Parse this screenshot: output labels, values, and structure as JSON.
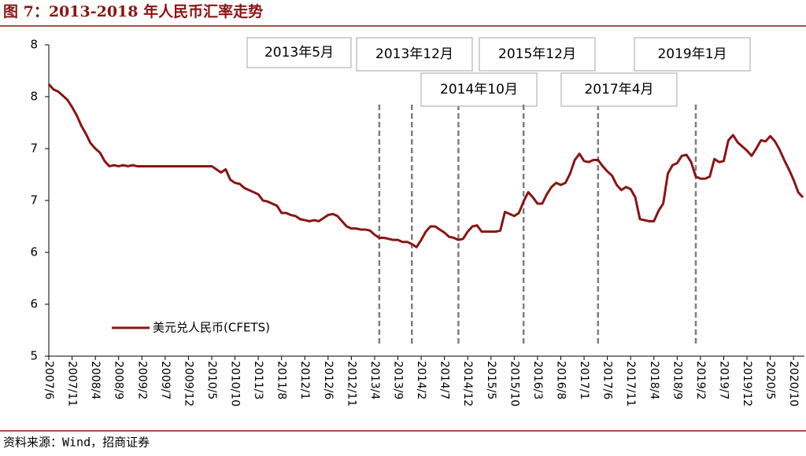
{
  "chart_data": {
    "type": "line",
    "title": "图 7：2013-2018 年人民币汇率走势",
    "source": "资料来源：Wind，招商证券",
    "categories": [
      "2007/6",
      null,
      null,
      null,
      null,
      "2007/11",
      null,
      null,
      null,
      null,
      "2008/4",
      null,
      null,
      null,
      null,
      "2008/9",
      null,
      null,
      null,
      null,
      "2009/2",
      null,
      null,
      null,
      null,
      "2009/7",
      null,
      null,
      null,
      null,
      "2009/12",
      null,
      null,
      null,
      null,
      "2010/5",
      null,
      null,
      null,
      null,
      "2010/10",
      null,
      null,
      null,
      null,
      "2011/3",
      null,
      null,
      null,
      null,
      "2011/8",
      null,
      null,
      null,
      null,
      "2012/1",
      null,
      null,
      null,
      null,
      "2012/6",
      null,
      null,
      null,
      null,
      "2012/11",
      null,
      null,
      null,
      null,
      "2013/4",
      null,
      null,
      null,
      null,
      "2013/9",
      null,
      null,
      null,
      null,
      "2014/2",
      null,
      null,
      null,
      null,
      "2014/7",
      null,
      null,
      null,
      null,
      "2014/12",
      null,
      null,
      null,
      null,
      "2015/5",
      null,
      null,
      null,
      null,
      "2015/10",
      null,
      null,
      null,
      null,
      "2016/3",
      null,
      null,
      null,
      null,
      "2016/8",
      null,
      null,
      null,
      null,
      "2017/1",
      null,
      null,
      null,
      null,
      "2017/6",
      null,
      null,
      null,
      null,
      "2017/11",
      null,
      null,
      null,
      null,
      "2018/4",
      null,
      null,
      null,
      null,
      "2018/9",
      null,
      null,
      null,
      null,
      "2019/2",
      null,
      null,
      null,
      null,
      "2019/7",
      null,
      null,
      null,
      null,
      "2019/12",
      null,
      null,
      null,
      null,
      "2020/5",
      null,
      null,
      null,
      null,
      "2020/10",
      null,
      null
    ],
    "series": [
      {
        "name": "美元兑人民币(CFETS)",
        "color": "#8b1414",
        "values": [
          7.62,
          7.57,
          7.55,
          7.51,
          7.47,
          7.4,
          7.32,
          7.22,
          7.14,
          7.05,
          7.0,
          6.96,
          6.88,
          6.83,
          6.84,
          6.83,
          6.84,
          6.83,
          6.84,
          6.83,
          6.83,
          6.83,
          6.83,
          6.83,
          6.83,
          6.83,
          6.83,
          6.83,
          6.83,
          6.83,
          6.83,
          6.83,
          6.83,
          6.83,
          6.83,
          6.83,
          6.8,
          6.77,
          6.8,
          6.7,
          6.67,
          6.66,
          6.62,
          6.6,
          6.58,
          6.56,
          6.5,
          6.49,
          6.47,
          6.45,
          6.38,
          6.38,
          6.36,
          6.35,
          6.32,
          6.31,
          6.3,
          6.31,
          6.3,
          6.33,
          6.36,
          6.37,
          6.35,
          6.3,
          6.25,
          6.23,
          6.23,
          6.22,
          6.22,
          6.21,
          6.17,
          6.14,
          6.14,
          6.13,
          6.12,
          6.12,
          6.1,
          6.1,
          6.08,
          6.05,
          6.12,
          6.2,
          6.25,
          6.25,
          6.22,
          6.19,
          6.15,
          6.14,
          6.12,
          6.13,
          6.2,
          6.25,
          6.26,
          6.2,
          6.2,
          6.2,
          6.2,
          6.21,
          6.39,
          6.37,
          6.35,
          6.38,
          6.49,
          6.58,
          6.53,
          6.47,
          6.47,
          6.56,
          6.63,
          6.67,
          6.65,
          6.67,
          6.76,
          6.89,
          6.95,
          6.88,
          6.87,
          6.89,
          6.89,
          6.83,
          6.78,
          6.74,
          6.65,
          6.6,
          6.63,
          6.61,
          6.53,
          6.32,
          6.31,
          6.3,
          6.3,
          6.4,
          6.47,
          6.76,
          6.84,
          6.86,
          6.93,
          6.94,
          6.87,
          6.73,
          6.71,
          6.71,
          6.73,
          6.9,
          6.87,
          6.88,
          7.08,
          7.13,
          7.06,
          7.02,
          6.98,
          6.93,
          7.0,
          7.08,
          7.07,
          7.12,
          7.07,
          6.99,
          6.89,
          6.8,
          6.7,
          6.58,
          6.53
        ]
      }
    ],
    "ylim": [
      5.0,
      8.0
    ],
    "yticks": [
      {
        "value": 5.0,
        "label": "5"
      },
      {
        "value": 5.5,
        "label": "6"
      },
      {
        "value": 6.0,
        "label": "6"
      },
      {
        "value": 6.5,
        "label": "7"
      },
      {
        "value": 7.0,
        "label": "7"
      },
      {
        "value": 7.5,
        "label": "8"
      },
      {
        "value": 8.0,
        "label": "8"
      }
    ],
    "annotations": [
      {
        "label": "2013年5月",
        "x": "2013/5"
      },
      {
        "label": "2013年12月",
        "x": "2013/12"
      },
      {
        "label": "2014年10月",
        "x": "2014/10"
      },
      {
        "label": "2015年12月",
        "x": "2015/12"
      },
      {
        "label": "2017年4月",
        "x": "2017/4"
      },
      {
        "label": "2019年1月",
        "x": "2019/1"
      }
    ],
    "legend": "lower left",
    "grid": false
  }
}
